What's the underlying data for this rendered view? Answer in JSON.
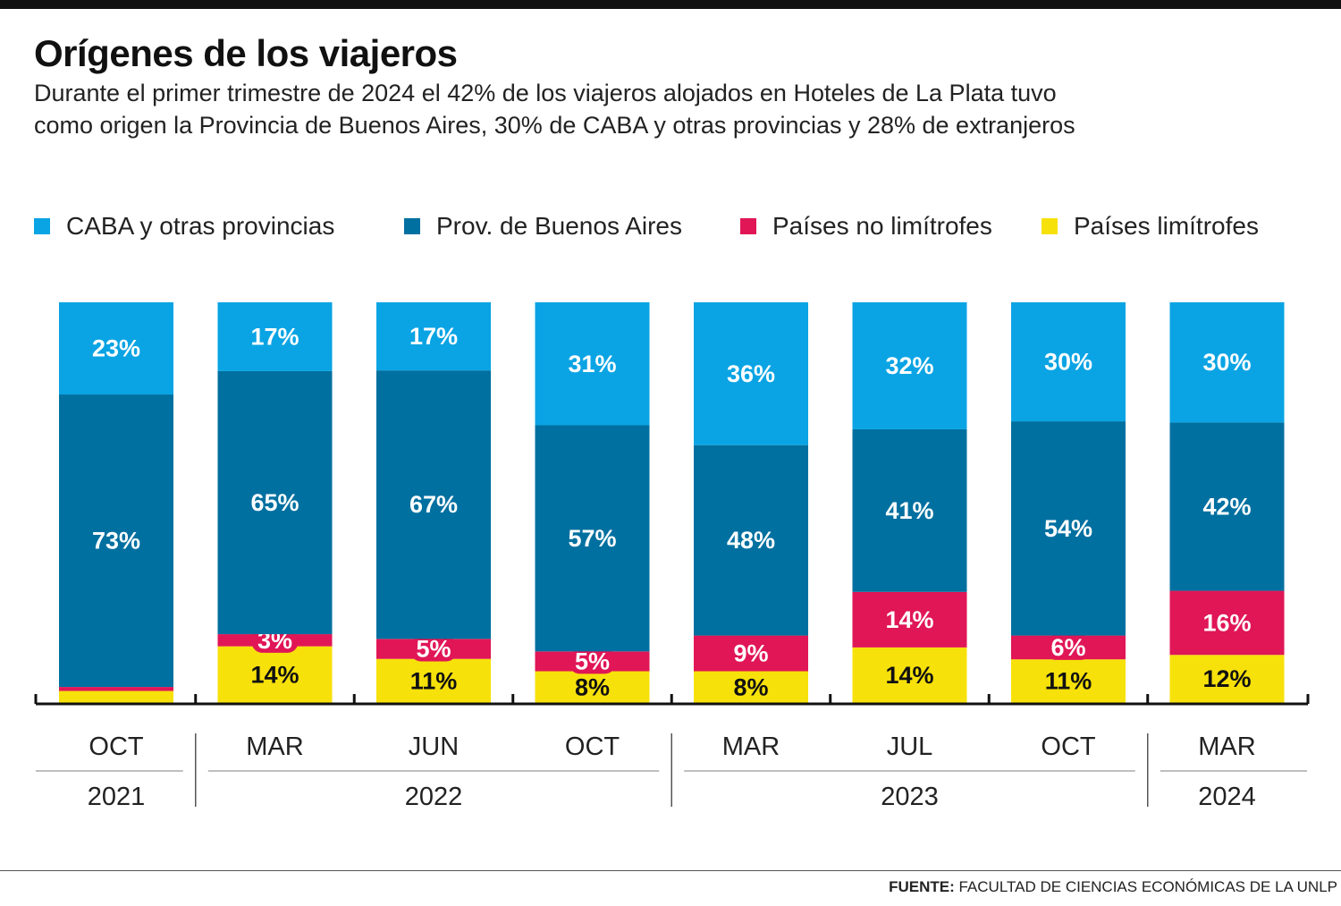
{
  "title": "Orígenes de los viajeros",
  "subtitle_lines": [
    "Durante el primer trimestre de 2024 el 42% de los viajeros alojados en Hoteles de La Plata tuvo",
    "como origen la Provincia de Buenos Aires, 30% de CABA y otras provincias y 28% de extranjeros"
  ],
  "legend": [
    {
      "label": "CABA y otras provincias",
      "color": "#0aa4e4"
    },
    {
      "label": "Prov. de Buenos Aires",
      "color": "#0070a0"
    },
    {
      "label": "Países no limítrofes",
      "color": "#e01656"
    },
    {
      "label": "Países limítrofes",
      "color": "#f7e10a"
    }
  ],
  "chart_data": {
    "type": "bar",
    "stacked": true,
    "unit": "%",
    "categories": [
      "OCT",
      "MAR",
      "JUN",
      "OCT",
      "MAR",
      "JUL",
      "OCT",
      "MAR"
    ],
    "years": [
      {
        "label": "2021",
        "count": 1
      },
      {
        "label": "2022",
        "count": 3
      },
      {
        "label": "2023",
        "count": 3
      },
      {
        "label": "2024",
        "count": 1
      }
    ],
    "series": [
      {
        "name": "Países limítrofes",
        "values": [
          3,
          14,
          11,
          8,
          8,
          14,
          11,
          12
        ],
        "labels": [
          "",
          "14%",
          "11%",
          "8%",
          "8%",
          "14%",
          "11%",
          "12%"
        ]
      },
      {
        "name": "Países no limítrofes",
        "values": [
          1,
          3,
          5,
          5,
          9,
          14,
          6,
          16
        ],
        "labels": [
          "",
          "3%",
          "5%",
          "5%",
          "9%",
          "14%",
          "6%",
          "16%"
        ]
      },
      {
        "name": "Prov. de Buenos Aires",
        "values": [
          73,
          65,
          67,
          57,
          48,
          41,
          54,
          42
        ],
        "labels": [
          "73%",
          "65%",
          "67%",
          "57%",
          "48%",
          "41%",
          "54%",
          "42%"
        ]
      },
      {
        "name": "CABA y otras provincias",
        "values": [
          23,
          17,
          17,
          31,
          36,
          32,
          30,
          30
        ],
        "labels": [
          "23%",
          "17%",
          "17%",
          "31%",
          "36%",
          "32%",
          "30%",
          "30%"
        ]
      }
    ],
    "ylim": [
      0,
      100
    ]
  },
  "source": {
    "prefix": "FUENTE:",
    "text": "FACULTAD DE CIENCIAS ECONÓMICAS DE LA UNLP"
  }
}
